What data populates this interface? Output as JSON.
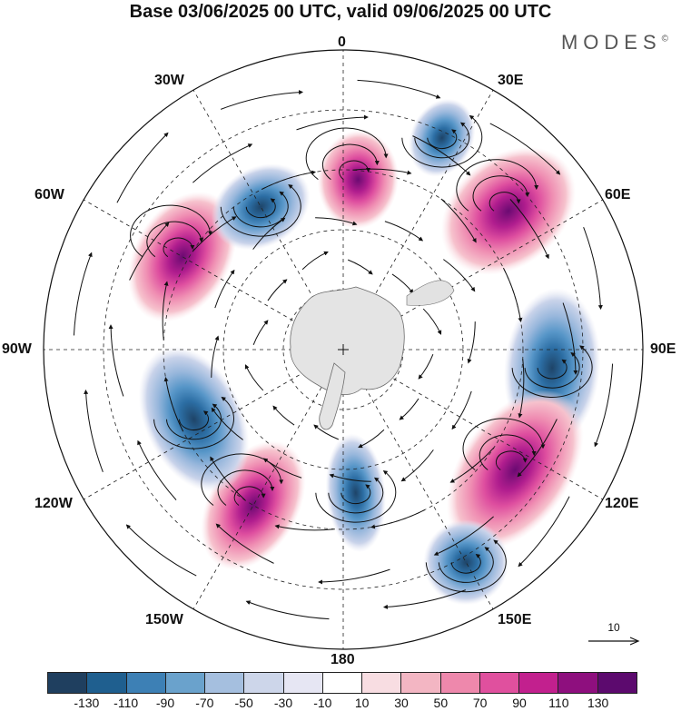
{
  "title": "Base 03/06/2025 00 UTC, valid 09/06/2025 00 UTC",
  "brand": "MODES",
  "brand_mark": "©",
  "longitude_labels": {
    "n0": "0",
    "e30": "30E",
    "e60": "60E",
    "e90": "90E",
    "e120": "120E",
    "e150": "150E",
    "s180": "180",
    "w150": "150W",
    "w120": "120W",
    "w90": "90W",
    "w60": "60W",
    "w30": "30W"
  },
  "reference_vector": {
    "label": "10"
  },
  "colorbar": {
    "colors": [
      "#1f3f5f",
      "#1f5f8f",
      "#3d80b5",
      "#6aa2cc",
      "#a5bfdf",
      "#cdd6ea",
      "#e6e6f3",
      "#ffffff",
      "#f8dde2",
      "#f3b6c3",
      "#ee88ac",
      "#e0509e",
      "#c2208e",
      "#8e0f7e",
      "#5c0a6e"
    ],
    "ticks": [
      "-130",
      "-110",
      "-90",
      "-70",
      "-50",
      "-30",
      "-10",
      "10",
      "30",
      "50",
      "70",
      "90",
      "110",
      "130"
    ]
  },
  "anomaly_centers": [
    {
      "sign": "positive",
      "level": 110,
      "lon_deg": 300
    },
    {
      "sign": "negative",
      "level": -90,
      "lon_deg": 330
    },
    {
      "sign": "positive",
      "level": 70,
      "lon_deg": 5
    },
    {
      "sign": "negative",
      "level": -70,
      "lon_deg": 25
    },
    {
      "sign": "positive",
      "level": 110,
      "lon_deg": 50
    },
    {
      "sign": "negative",
      "level": -110,
      "lon_deg": 95
    },
    {
      "sign": "positive",
      "level": 110,
      "lon_deg": 125
    },
    {
      "sign": "negative",
      "level": -90,
      "lon_deg": 150
    },
    {
      "sign": "negative",
      "level": -50,
      "lon_deg": 175
    },
    {
      "sign": "positive",
      "level": 110,
      "lon_deg": 210
    },
    {
      "sign": "negative",
      "level": -130,
      "lon_deg": 245
    }
  ]
}
